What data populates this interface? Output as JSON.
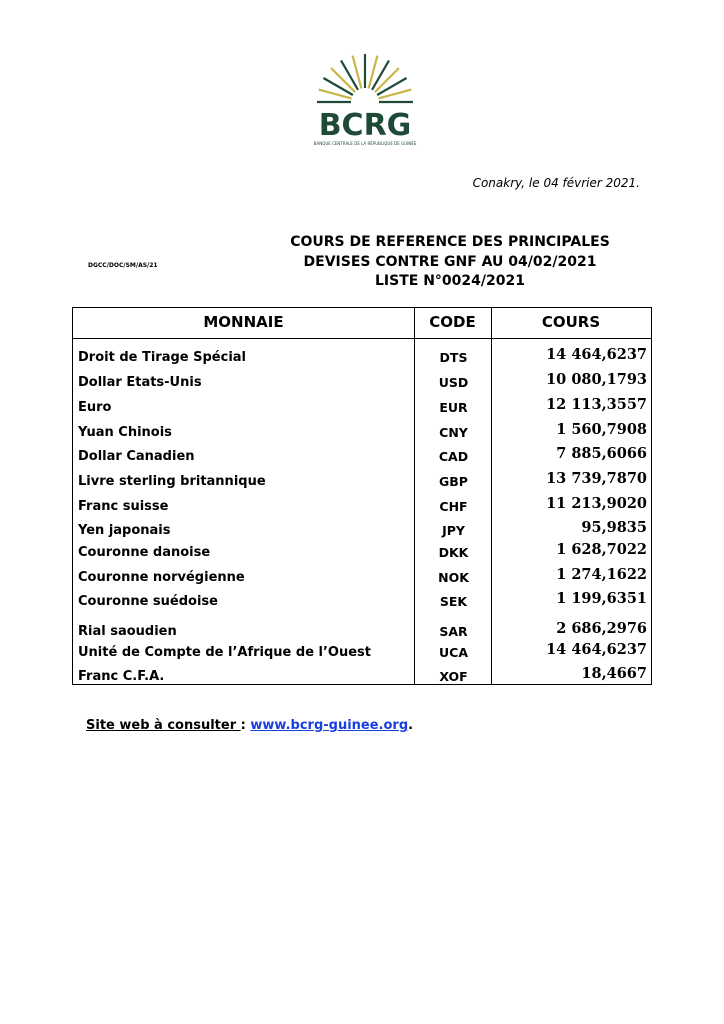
{
  "logo": {
    "text": "BCRG",
    "subtitle": "BANQUE CENTRALE DE LA RÉPUBLIQUE DE GUINÉE",
    "green": "#1f4a37",
    "gold": "#c8b647"
  },
  "date_line": "Conakry, le 04 février 2021.",
  "reference": "DGCC/DOC/SM/AS/21",
  "title": [
    "COURS DE REFERENCE DES PRINCIPALES",
    "DEVISES CONTRE GNF AU  04/02/2021",
    "LISTE N°0024/2021"
  ],
  "table": {
    "headers": [
      "MONNAIE",
      "CODE",
      "COURS"
    ],
    "rows": [
      {
        "name": "Droit de Tirage Spécial",
        "code": "DTS",
        "rate": "14 464,6237"
      },
      {
        "name": "Dollar Etats-Unis",
        "code": "USD",
        "rate": "10 080,1793"
      },
      {
        "name": "Euro",
        "code": "EUR",
        "rate": "12 113,3557"
      },
      {
        "name": "Yuan Chinois",
        "code": "CNY",
        "rate": "1 560,7908"
      },
      {
        "name": "Dollar Canadien",
        "code": "CAD",
        "rate": "7 885,6066"
      },
      {
        "name": "Livre sterling britannique",
        "code": "GBP",
        "rate": "13 739,7870"
      },
      {
        "name": "Franc suisse",
        "code": "CHF",
        "rate": "11 213,9020"
      },
      {
        "name": "Yen japonais",
        "code": "JPY",
        "rate": "95,9835"
      },
      {
        "name": "Couronne danoise",
        "code": "DKK",
        "rate": "1 628,7022"
      },
      {
        "name": "Couronne norvégienne",
        "code": "NOK",
        "rate": "1 274,1622"
      },
      {
        "name": "Couronne suédoise",
        "code": "SEK",
        "rate": "1 199,6351"
      },
      {
        "name": "Rial saoudien",
        "code": "SAR",
        "rate": "2 686,2976"
      },
      {
        "name": "Unité de Compte de l’Afrique de l’Ouest",
        "code": "UCA",
        "rate": "14 464,6237"
      },
      {
        "name": "Franc C.F.A.",
        "code": "XOF",
        "rate": "18,4667"
      }
    ]
  },
  "footer": {
    "label": "Site web à consulter ",
    "sep": ": ",
    "link": "www.bcrg-guinee.org",
    "end": "."
  }
}
